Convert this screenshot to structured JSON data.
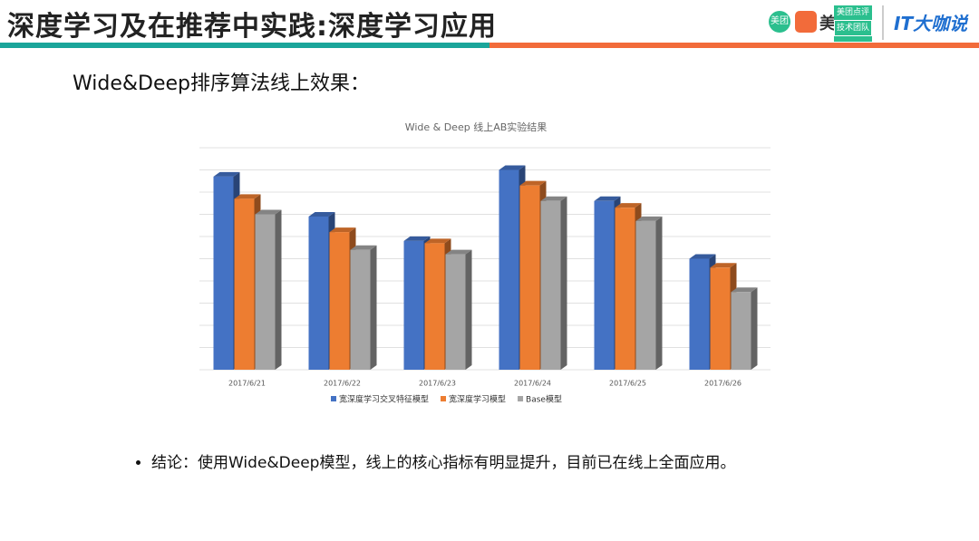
{
  "header": {
    "title": "深度学习及在推荐中实践:深度学习应用",
    "logos": [
      "美团",
      "美",
      "美团点评",
      "技术团队",
      "IT大咖说"
    ]
  },
  "subtitle": "Wide&Deep排序算法线上效果：",
  "conclusion": "结论：使用Wide&Deep模型，线上的核心指标有明显提升，目前已在线上全面应用。",
  "chart_data": {
    "type": "bar3d",
    "title": "Wide & Deep 线上AB实验结果",
    "categories": [
      "2017/6/21",
      "2017/6/22",
      "2017/6/23",
      "2017/6/24",
      "2017/6/25",
      "2017/6/26"
    ],
    "series": [
      {
        "name": "宽深度学习交叉特征模型",
        "color": "#4472c4",
        "values": [
          8.7,
          6.9,
          5.8,
          9.0,
          7.6,
          5.0
        ]
      },
      {
        "name": "宽深度学习模型",
        "color": "#ed7d31",
        "values": [
          7.7,
          6.2,
          5.7,
          8.3,
          7.3,
          4.6
        ]
      },
      {
        "name": "Base模型",
        "color": "#a5a5a5",
        "values": [
          7.0,
          5.4,
          5.2,
          7.6,
          6.7,
          3.5
        ]
      }
    ],
    "ylim": [
      0,
      10
    ],
    "grid": true,
    "legend": "bottom"
  }
}
